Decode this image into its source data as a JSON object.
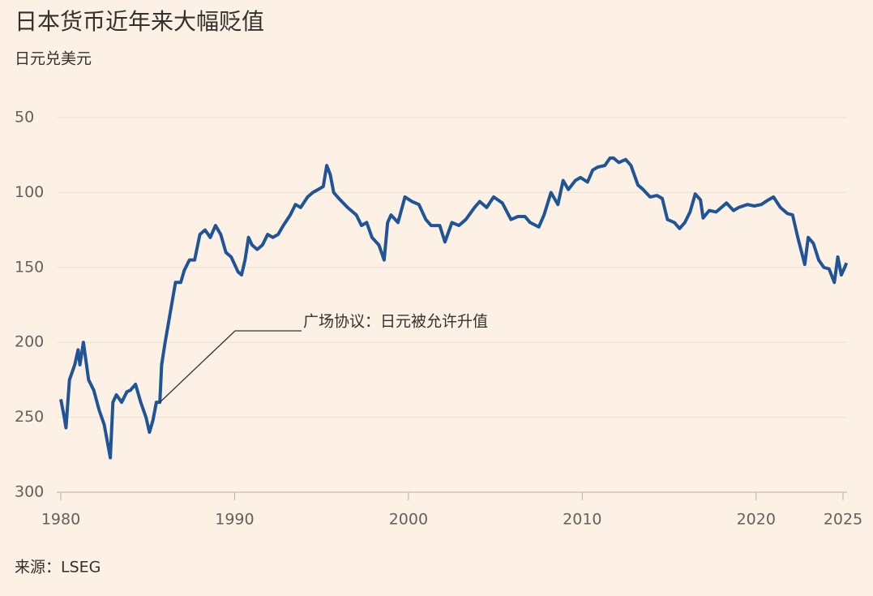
{
  "chart_data": {
    "type": "line",
    "title": "日本货币近年来大幅贬值",
    "subtitle": "日元兑美元",
    "source": "来源：LSEG",
    "color": "#1f5597",
    "xlim": [
      1980,
      2025
    ],
    "xticks": [
      1980,
      1990,
      2000,
      2010,
      2020,
      2025
    ],
    "ylim": [
      50,
      300
    ],
    "y_inverted": true,
    "yticks": [
      50,
      100,
      150,
      200,
      250,
      300
    ],
    "grid": true,
    "annotation": {
      "text": "广场协议：日元被允许升值",
      "x": 1985.7,
      "y": 240
    },
    "x": [
      1980.0,
      1980.2,
      1980.3,
      1980.5,
      1980.8,
      1981.0,
      1981.1,
      1981.3,
      1981.6,
      1981.9,
      1982.2,
      1982.5,
      1982.85,
      1983.0,
      1983.2,
      1983.5,
      1983.8,
      1984.0,
      1984.3,
      1984.6,
      1984.9,
      1985.1,
      1985.3,
      1985.5,
      1985.7,
      1985.8,
      1986.0,
      1986.3,
      1986.6,
      1986.9,
      1987.1,
      1987.4,
      1987.7,
      1988.0,
      1988.3,
      1988.6,
      1988.9,
      1989.2,
      1989.5,
      1989.8,
      1990.2,
      1990.4,
      1990.6,
      1990.8,
      1991.0,
      1991.3,
      1991.6,
      1991.9,
      1992.2,
      1992.5,
      1992.8,
      1993.2,
      1993.5,
      1993.8,
      1994.2,
      1994.5,
      1994.8,
      1995.1,
      1995.3,
      1995.5,
      1995.7,
      1996.0,
      1996.5,
      1997.0,
      1997.3,
      1997.6,
      1997.9,
      1998.3,
      1998.6,
      1998.8,
      1999.0,
      1999.4,
      1999.8,
      2000.2,
      2000.6,
      2001.0,
      2001.3,
      2001.8,
      2002.1,
      2002.5,
      2002.9,
      2003.3,
      2003.8,
      2004.1,
      2004.5,
      2004.9,
      2005.4,
      2005.9,
      2006.3,
      2006.7,
      2007.0,
      2007.5,
      2007.8,
      2008.2,
      2008.6,
      2008.9,
      2009.2,
      2009.6,
      2009.9,
      2010.3,
      2010.6,
      2010.9,
      2011.3,
      2011.6,
      2011.8,
      2012.1,
      2012.5,
      2012.8,
      2013.2,
      2013.5,
      2013.9,
      2014.3,
      2014.6,
      2014.9,
      2015.3,
      2015.6,
      2015.9,
      2016.2,
      2016.5,
      2016.8,
      2016.95,
      2017.3,
      2017.7,
      2018.0,
      2018.3,
      2018.7,
      2019.0,
      2019.5,
      2019.9,
      2020.3,
      2020.7,
      2021.0,
      2021.4,
      2021.8,
      2022.1,
      2022.4,
      2022.8,
      2023.0,
      2023.3,
      2023.6,
      2023.9,
      2024.2,
      2024.5,
      2024.7,
      2024.9,
      2025.1,
      2025.2
    ],
    "values": [
      238,
      250,
      257,
      225,
      215,
      205,
      215,
      200,
      225,
      232,
      245,
      255,
      277,
      240,
      235,
      240,
      233,
      232,
      228,
      240,
      250,
      260,
      252,
      240,
      240,
      215,
      200,
      180,
      160,
      160,
      152,
      145,
      145,
      128,
      125,
      130,
      122,
      128,
      140,
      143,
      153,
      155,
      145,
      130,
      135,
      138,
      135,
      128,
      130,
      128,
      122,
      115,
      108,
      110,
      103,
      100,
      98,
      96,
      82,
      88,
      100,
      104,
      110,
      115,
      122,
      120,
      130,
      135,
      145,
      120,
      115,
      120,
      103,
      106,
      108,
      118,
      122,
      122,
      133,
      120,
      122,
      118,
      110,
      106,
      110,
      103,
      107,
      118,
      116,
      116,
      120,
      123,
      115,
      100,
      108,
      92,
      98,
      92,
      90,
      93,
      85,
      83,
      82,
      77,
      77,
      80,
      78,
      82,
      95,
      98,
      103,
      102,
      104,
      118,
      120,
      124,
      120,
      113,
      101,
      105,
      117,
      112,
      113,
      110,
      107,
      112,
      110,
      108,
      109,
      108,
      105,
      103,
      110,
      114,
      115,
      130,
      148,
      130,
      134,
      145,
      150,
      151,
      160,
      143,
      155,
      150,
      147
    ]
  }
}
